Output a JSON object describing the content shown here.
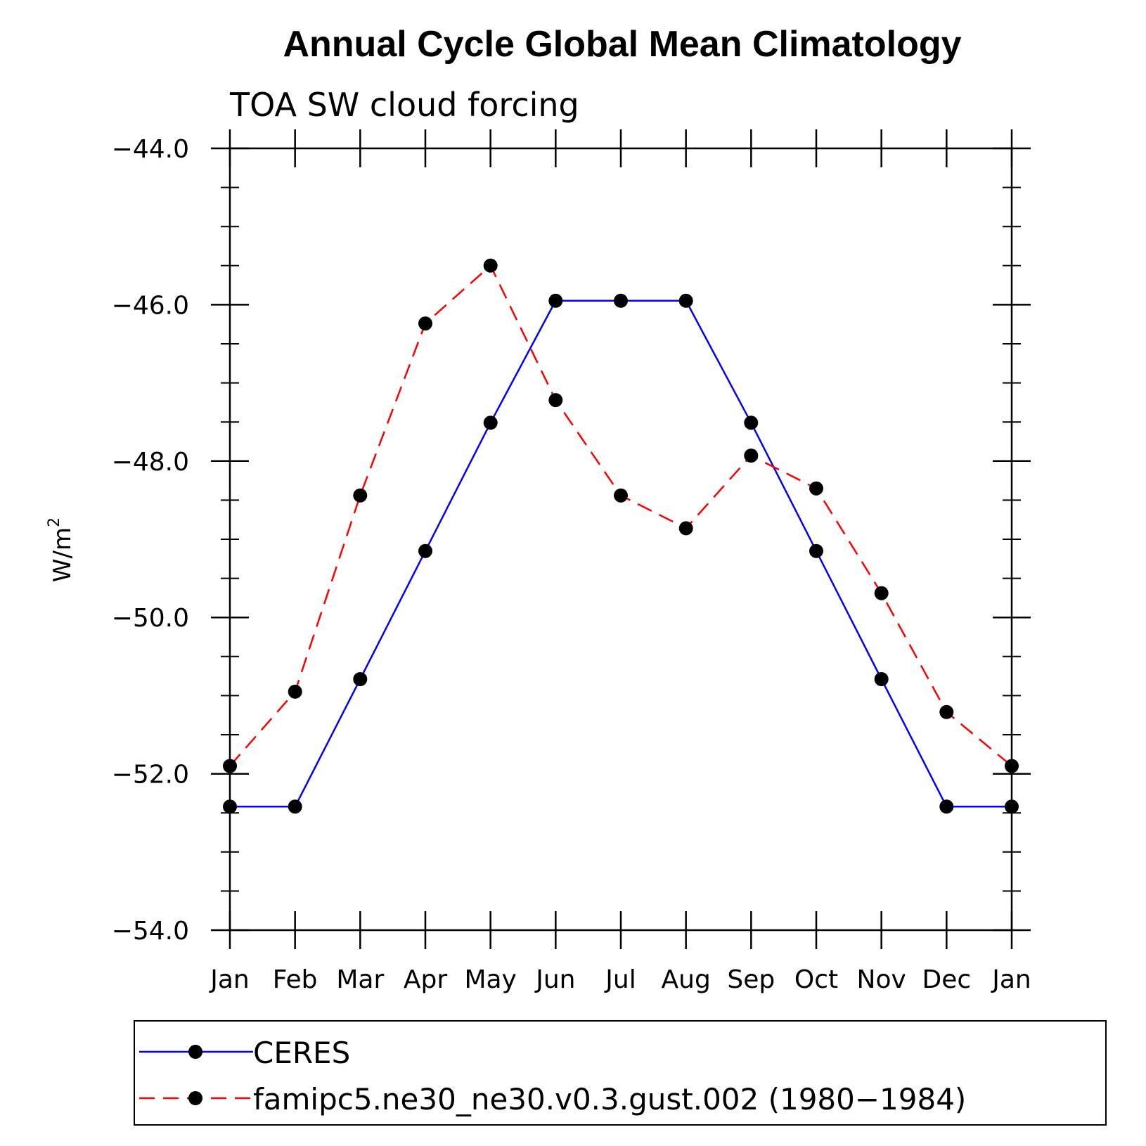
{
  "chart_data": {
    "type": "line",
    "title": "Annual Cycle Global Mean Climatology",
    "subtitle": "TOA SW cloud forcing",
    "ylabel": "W/m",
    "ylabel_sup": "2",
    "x": [
      "Jan",
      "Feb",
      "Mar",
      "Apr",
      "May",
      "Jun",
      "Jul",
      "Aug",
      "Sep",
      "Oct",
      "Nov",
      "Dec",
      "Jan"
    ],
    "ylim": [
      -54.0,
      -44.0
    ],
    "yticks": [
      -44.0,
      -46.0,
      -48.0,
      -50.0,
      -52.0,
      -54.0
    ],
    "ytick_labels": [
      "−44.0",
      "−46.0",
      "−48.0",
      "−50.0",
      "−52.0",
      "−54.0"
    ],
    "grid": false,
    "legend_position": "bottom",
    "series": [
      {
        "name": "CERES",
        "color": "#0000ff",
        "style": "solid",
        "values": [
          -52.42,
          -52.42,
          -50.79,
          -49.15,
          -47.51,
          -45.95,
          -45.95,
          -45.95,
          -47.51,
          -49.15,
          -50.79,
          -52.42,
          -52.42
        ]
      },
      {
        "name": "famipc5.ne30_ne30.v0.3.gust.002 (1980−1984)",
        "color": "#ff0000",
        "style": "dashed",
        "values": [
          -51.9,
          -50.95,
          -48.44,
          -46.24,
          -45.5,
          -47.22,
          -48.44,
          -48.86,
          -47.93,
          -48.35,
          -49.69,
          -51.21,
          -51.9
        ]
      }
    ]
  }
}
